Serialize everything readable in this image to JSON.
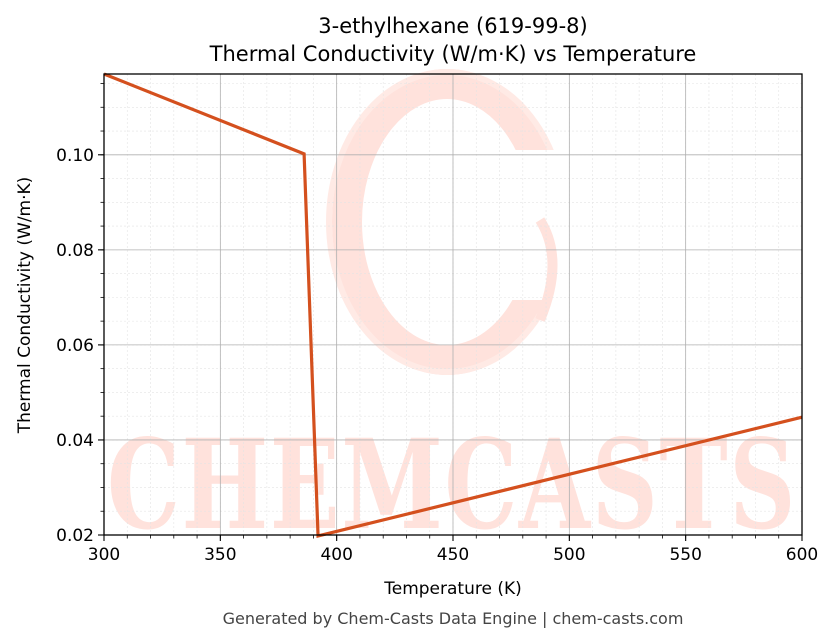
{
  "chart_data": {
    "type": "line",
    "title": "3-ethylhexane (619-99-8)",
    "subtitle": "Thermal Conductivity (W/m·K) vs Temperature",
    "xlabel": "Temperature (K)",
    "ylabel": "Thermal Conductivity (W/m·K)",
    "xlim": [
      300,
      600
    ],
    "ylim": [
      0.02,
      0.117
    ],
    "xticks": [
      300,
      350,
      400,
      450,
      500,
      550,
      600
    ],
    "yticks": [
      0.02,
      0.04,
      0.06,
      0.08,
      0.1
    ],
    "grid": true,
    "series": [
      {
        "color": "#d4501e",
        "x": [
          300,
          386,
          392,
          600
        ],
        "y": [
          0.117,
          0.1002,
          0.0198,
          0.0448
        ]
      }
    ]
  },
  "watermark": {
    "text": "CHEMCASTS",
    "color": "#ffe2dc"
  },
  "footer": "Generated by Chem-Casts Data Engine | chem-casts.com"
}
